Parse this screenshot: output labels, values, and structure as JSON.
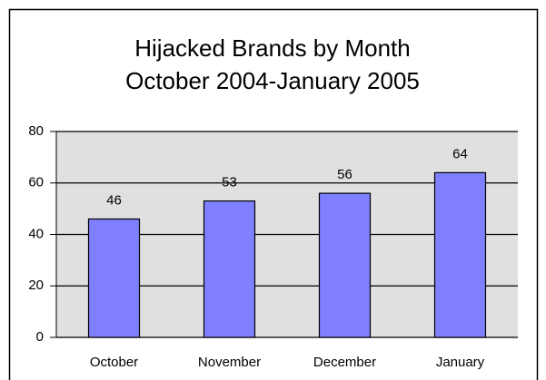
{
  "chart_data": {
    "type": "bar",
    "title": "Hijacked Brands by Month",
    "subtitle": "October 2004-January 2005",
    "categories": [
      "October",
      "November",
      "December",
      "January"
    ],
    "values": [
      46,
      53,
      56,
      64
    ],
    "color": "#7f7fff",
    "ylim": [
      0,
      80
    ],
    "yticks": [
      0,
      20,
      40,
      60,
      80
    ],
    "grid": true
  }
}
